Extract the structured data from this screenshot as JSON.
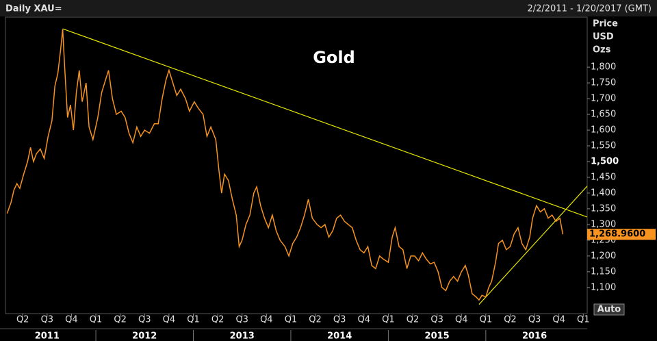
{
  "chart_data": {
    "type": "line",
    "header_left": "Daily XAU=",
    "header_right": "2/2/2011 - 1/20/2017 (GMT)",
    "title": "Gold",
    "y_axis_label": [
      "Price",
      "USD",
      "Ozs"
    ],
    "auto_button": "Auto",
    "grid": false,
    "xlim": [
      2011.073,
      2017.04
    ],
    "ylim": [
      1017,
      1959
    ],
    "yticks": [
      {
        "value": 1100,
        "label": "1,100"
      },
      {
        "value": 1150,
        "label": "1,150"
      },
      {
        "value": 1200,
        "label": "1,200"
      },
      {
        "value": 1250,
        "label": "1,250"
      },
      {
        "value": 1300,
        "label": "1,300"
      },
      {
        "value": 1350,
        "label": "1,350"
      },
      {
        "value": 1400,
        "label": "1,400"
      },
      {
        "value": 1450,
        "label": "1,450"
      },
      {
        "value": 1500,
        "label": "1,500"
      },
      {
        "value": 1550,
        "label": "1,550"
      },
      {
        "value": 1600,
        "label": "1,600"
      },
      {
        "value": 1650,
        "label": "1,650"
      },
      {
        "value": 1700,
        "label": "1,700"
      },
      {
        "value": 1750,
        "label": "1,750"
      },
      {
        "value": 1800,
        "label": "1,800"
      }
    ],
    "bold_ytick": 1500,
    "xticks": [
      {
        "value": 2011.25,
        "label": "Q2"
      },
      {
        "value": 2011.5,
        "label": "Q3"
      },
      {
        "value": 2011.75,
        "label": "Q4"
      },
      {
        "value": 2012,
        "label": "Q1"
      },
      {
        "value": 2012.25,
        "label": "Q2"
      },
      {
        "value": 2012.5,
        "label": "Q3"
      },
      {
        "value": 2012.75,
        "label": "Q4"
      },
      {
        "value": 2013,
        "label": "Q1"
      },
      {
        "value": 2013.25,
        "label": "Q2"
      },
      {
        "value": 2013.5,
        "label": "Q3"
      },
      {
        "value": 2013.75,
        "label": "Q4"
      },
      {
        "value": 2014,
        "label": "Q1"
      },
      {
        "value": 2014.25,
        "label": "Q2"
      },
      {
        "value": 2014.5,
        "label": "Q3"
      },
      {
        "value": 2014.75,
        "label": "Q4"
      },
      {
        "value": 2015,
        "label": "Q1"
      },
      {
        "value": 2015.25,
        "label": "Q2"
      },
      {
        "value": 2015.5,
        "label": "Q3"
      },
      {
        "value": 2015.75,
        "label": "Q4"
      },
      {
        "value": 2016,
        "label": "Q1"
      },
      {
        "value": 2016.25,
        "label": "Q2"
      },
      {
        "value": 2016.5,
        "label": "Q3"
      },
      {
        "value": 2016.75,
        "label": "Q4"
      },
      {
        "value": 2017,
        "label": "Q1"
      }
    ],
    "year_ticks": [
      2011,
      2012,
      2013,
      2014,
      2015,
      2016
    ],
    "last_value": {
      "value": 1268.96,
      "label": "1,268.9600"
    },
    "series": [
      {
        "color": "#f7931e",
        "x": [
          2011.09,
          2011.13,
          2011.16,
          2011.19,
          2011.22,
          2011.26,
          2011.3,
          2011.33,
          2011.36,
          2011.39,
          2011.43,
          2011.47,
          2011.51,
          2011.55,
          2011.58,
          2011.61,
          2011.64,
          2011.66,
          2011.68,
          2011.71,
          2011.74,
          2011.77,
          2011.8,
          2011.83,
          2011.86,
          2011.9,
          2011.93,
          2011.97,
          2012.02,
          2012.06,
          2012.1,
          2012.13,
          2012.17,
          2012.21,
          2012.26,
          2012.3,
          2012.34,
          2012.38,
          2012.42,
          2012.46,
          2012.5,
          2012.55,
          2012.6,
          2012.64,
          2012.68,
          2012.72,
          2012.75,
          2012.79,
          2012.83,
          2012.87,
          2012.92,
          2012.96,
          2013.01,
          2013.05,
          2013.1,
          2013.14,
          2013.18,
          2013.23,
          2013.26,
          2013.29,
          2013.32,
          2013.36,
          2013.4,
          2013.44,
          2013.47,
          2013.5,
          2013.54,
          2013.58,
          2013.62,
          2013.65,
          2013.69,
          2013.73,
          2013.77,
          2013.81,
          2013.85,
          2013.89,
          2013.94,
          2013.98,
          2014.02,
          2014.06,
          2014.1,
          2014.14,
          2014.18,
          2014.22,
          2014.27,
          2014.31,
          2014.35,
          2014.39,
          2014.43,
          2014.47,
          2014.51,
          2014.55,
          2014.59,
          2014.63,
          2014.67,
          2014.71,
          2014.75,
          2014.79,
          2014.83,
          2014.87,
          2014.91,
          2014.95,
          2015.0,
          2015.04,
          2015.07,
          2015.11,
          2015.15,
          2015.19,
          2015.23,
          2015.27,
          2015.31,
          2015.35,
          2015.39,
          2015.43,
          2015.47,
          2015.51,
          2015.55,
          2015.59,
          2015.63,
          2015.67,
          2015.71,
          2015.75,
          2015.79,
          2015.82,
          2015.86,
          2015.9,
          2015.93,
          2015.96,
          2016.0,
          2016.03,
          2016.06,
          2016.1,
          2016.13,
          2016.17,
          2016.21,
          2016.25,
          2016.29,
          2016.33,
          2016.37,
          2016.41,
          2016.45,
          2016.48,
          2016.52,
          2016.56,
          2016.6,
          2016.64,
          2016.68,
          2016.72,
          2016.76,
          2016.79
        ],
        "values": [
          1335,
          1370,
          1410,
          1430,
          1415,
          1460,
          1500,
          1545,
          1500,
          1525,
          1540,
          1510,
          1580,
          1630,
          1740,
          1780,
          1860,
          1920,
          1800,
          1640,
          1680,
          1600,
          1720,
          1790,
          1690,
          1750,
          1610,
          1570,
          1640,
          1720,
          1760,
          1790,
          1700,
          1650,
          1660,
          1640,
          1590,
          1560,
          1610,
          1580,
          1600,
          1590,
          1620,
          1620,
          1700,
          1760,
          1790,
          1750,
          1710,
          1730,
          1700,
          1660,
          1690,
          1670,
          1650,
          1580,
          1610,
          1570,
          1480,
          1400,
          1460,
          1440,
          1380,
          1330,
          1230,
          1250,
          1300,
          1330,
          1400,
          1420,
          1360,
          1320,
          1290,
          1330,
          1280,
          1250,
          1230,
          1200,
          1240,
          1260,
          1290,
          1330,
          1380,
          1320,
          1300,
          1290,
          1300,
          1260,
          1280,
          1320,
          1330,
          1310,
          1300,
          1290,
          1250,
          1220,
          1210,
          1230,
          1170,
          1160,
          1200,
          1190,
          1180,
          1260,
          1290,
          1230,
          1220,
          1160,
          1200,
          1200,
          1185,
          1210,
          1190,
          1175,
          1180,
          1150,
          1100,
          1090,
          1120,
          1135,
          1120,
          1150,
          1170,
          1140,
          1080,
          1070,
          1060,
          1075,
          1070,
          1100,
          1120,
          1180,
          1240,
          1250,
          1220,
          1230,
          1270,
          1290,
          1240,
          1220,
          1260,
          1320,
          1360,
          1340,
          1350,
          1320,
          1330,
          1310,
          1320,
          1268.96
        ]
      }
    ],
    "trendlines": [
      {
        "color": "#e6e600",
        "x": [
          2011.66,
          2017.04
        ],
        "y": [
          1922,
          1324
        ]
      },
      {
        "color": "#e6e600",
        "x": [
          2015.93,
          2017.04
        ],
        "y": [
          1046,
          1422
        ]
      }
    ]
  }
}
